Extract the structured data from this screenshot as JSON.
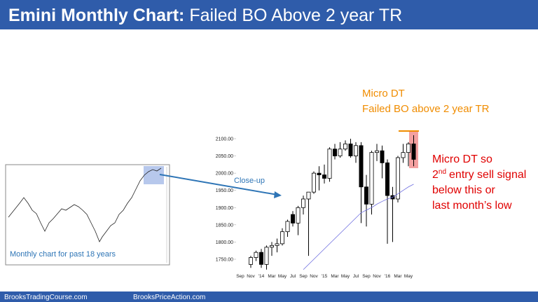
{
  "header": {
    "title_bold": "Emini Monthly Chart:",
    "title_rest": "Failed BO Above 2 year TR"
  },
  "footer": {
    "left": "BrooksTradingCourse.com",
    "right": "BrooksPriceAction.com"
  },
  "thumbnail": {
    "caption": "Monthly chart for past 18 years"
  },
  "arrow_label": "Close-up",
  "orange_note": {
    "line1": "Micro DT",
    "line2": "Failed BO above 2 year TR"
  },
  "red_note": {
    "line1": "Micro DT so",
    "line2_num": "2",
    "line2_sup": "nd",
    "line2_rest": "entry sell signal",
    "line3": "below this or",
    "line4": "last month’s low"
  },
  "chart_data": {
    "type": "candlestick",
    "categories": [
      "Sep",
      null,
      "Nov",
      null,
      "'14",
      null,
      "Mar",
      null,
      "May",
      null,
      "Jul",
      null,
      "Sep",
      null,
      "Nov",
      null,
      "'15",
      null,
      "Mar",
      null,
      "May",
      null,
      "Jul",
      null,
      "Sep",
      null,
      "Nov",
      null,
      "'16",
      null,
      "Mar",
      null,
      "May",
      null
    ],
    "open": [
      null,
      null,
      1735,
      1755,
      1770,
      1735,
      1785,
      1790,
      1795,
      1830,
      1880,
      1855,
      1900,
      1925,
      1945,
      2000,
      1995,
      1985,
      2070,
      2050,
      2070,
      2085,
      2050,
      2080,
      1960,
      1910,
      2060,
      2065,
      2030,
      1935,
      1925,
      2045,
      2060,
      2085
    ],
    "high": [
      null,
      null,
      1760,
      1775,
      1780,
      1790,
      1800,
      1810,
      1840,
      1865,
      1890,
      1905,
      1935,
      1945,
      2005,
      2020,
      2025,
      2075,
      2085,
      2090,
      2095,
      2100,
      2090,
      2090,
      1995,
      2065,
      2085,
      2080,
      2040,
      1960,
      2050,
      2085,
      2090,
      2110
    ],
    "low": [
      null,
      null,
      1725,
      1745,
      1725,
      1720,
      1760,
      1770,
      1790,
      1815,
      1845,
      1820,
      1880,
      1760,
      1940,
      1950,
      1970,
      1975,
      2040,
      2045,
      2065,
      2045,
      2030,
      1855,
      1845,
      1880,
      2035,
      1985,
      1795,
      1800,
      1915,
      2030,
      2020,
      2020
    ],
    "close": [
      null,
      null,
      1755,
      1770,
      1735,
      1785,
      1790,
      1795,
      1830,
      1860,
      1855,
      1900,
      1925,
      1945,
      2000,
      1995,
      1985,
      2070,
      2050,
      2070,
      2085,
      2050,
      2080,
      1960,
      1910,
      2060,
      2065,
      2030,
      1935,
      1925,
      2045,
      2060,
      2085,
      2040
    ],
    "up_color": "#ffffff",
    "down_color": "#000000",
    "ma": {
      "color": "#6f6fe0",
      "values": [
        null,
        null,
        null,
        null,
        null,
        null,
        null,
        null,
        null,
        null,
        null,
        null,
        1720,
        1735,
        1750,
        1765,
        1780,
        1795,
        1810,
        1825,
        1840,
        1855,
        1870,
        1885,
        1893,
        1900,
        1910,
        1918,
        1925,
        1930,
        1940,
        1950,
        1960,
        1968
      ]
    },
    "ylim": [
      1715,
      2115
    ],
    "yticks": [
      {
        "value": 1750,
        "label": "1750.00"
      },
      {
        "value": 1800,
        "label": "1800.00"
      },
      {
        "value": 1850,
        "label": "1850.00"
      },
      {
        "value": 1900,
        "label": "1900.00"
      },
      {
        "value": 1950,
        "label": "1950.00"
      },
      {
        "value": 2000,
        "label": "2000.00"
      },
      {
        "value": 2050,
        "label": "2050.00"
      },
      {
        "value": 2100,
        "label": "2100.00"
      }
    ]
  }
}
